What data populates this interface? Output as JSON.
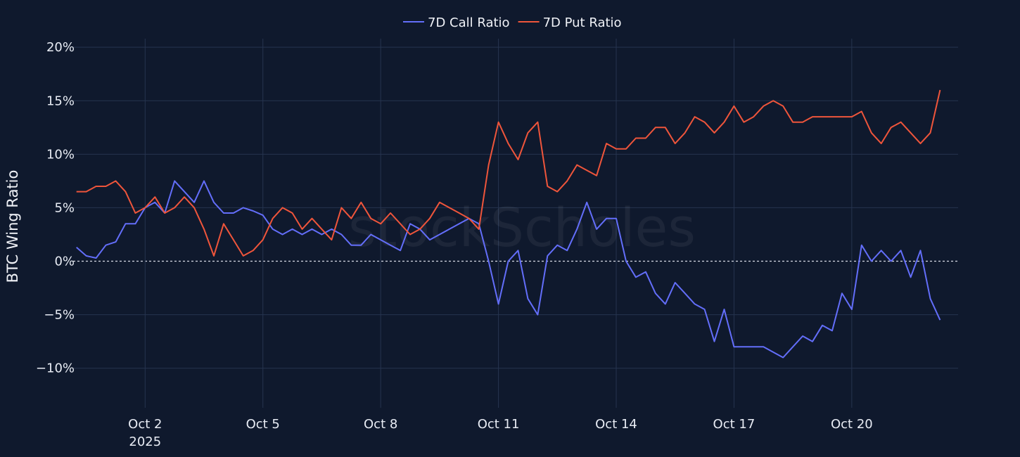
{
  "chart_data": {
    "type": "line",
    "title": "",
    "xlabel": "",
    "ylabel": "BTC Wing Ratio",
    "watermark": "stockScholes",
    "legend_placement": "top-center",
    "grid": true,
    "zero_line": "dashed",
    "xlim": [
      "2025-09-30 04:00",
      "2025-10-22 17:00"
    ],
    "ylim": [
      -13.7,
      20.8
    ],
    "y_ticks": [
      -10,
      -5,
      0,
      5,
      10,
      15,
      20
    ],
    "y_tick_labels": [
      "−10%",
      "−5%",
      "0%",
      "5%",
      "10%",
      "15%",
      "20%"
    ],
    "x_ticks": [
      "2025-10-02 00:00",
      "2025-10-05 00:00",
      "2025-10-08 00:00",
      "2025-10-11 00:00",
      "2025-10-14 00:00",
      "2025-10-17 00:00",
      "2025-10-20 00:00"
    ],
    "x_tick_labels": [
      "Oct 2",
      "Oct 5",
      "Oct 8",
      "Oct 11",
      "Oct 14",
      "Oct 17",
      "Oct 20"
    ],
    "x_tick_year": "2025",
    "x": [
      "2025-09-30 06:00",
      "2025-09-30 12:00",
      "2025-09-30 18:00",
      "2025-10-01 00:00",
      "2025-10-01 06:00",
      "2025-10-01 12:00",
      "2025-10-01 18:00",
      "2025-10-02 00:00",
      "2025-10-02 06:00",
      "2025-10-02 12:00",
      "2025-10-02 18:00",
      "2025-10-03 00:00",
      "2025-10-03 06:00",
      "2025-10-03 12:00",
      "2025-10-03 18:00",
      "2025-10-04 00:00",
      "2025-10-04 06:00",
      "2025-10-04 12:00",
      "2025-10-04 18:00",
      "2025-10-05 00:00",
      "2025-10-05 06:00",
      "2025-10-05 12:00",
      "2025-10-05 18:00",
      "2025-10-06 00:00",
      "2025-10-06 06:00",
      "2025-10-06 12:00",
      "2025-10-06 18:00",
      "2025-10-07 00:00",
      "2025-10-07 06:00",
      "2025-10-07 12:00",
      "2025-10-07 18:00",
      "2025-10-08 00:00",
      "2025-10-08 06:00",
      "2025-10-08 12:00",
      "2025-10-08 18:00",
      "2025-10-09 00:00",
      "2025-10-09 06:00",
      "2025-10-09 12:00",
      "2025-10-09 18:00",
      "2025-10-10 00:00",
      "2025-10-10 06:00",
      "2025-10-10 12:00",
      "2025-10-10 18:00",
      "2025-10-11 00:00",
      "2025-10-11 06:00",
      "2025-10-11 12:00",
      "2025-10-11 18:00",
      "2025-10-12 00:00",
      "2025-10-12 06:00",
      "2025-10-12 12:00",
      "2025-10-12 18:00",
      "2025-10-13 00:00",
      "2025-10-13 06:00",
      "2025-10-13 12:00",
      "2025-10-13 18:00",
      "2025-10-14 00:00",
      "2025-10-14 06:00",
      "2025-10-14 12:00",
      "2025-10-14 18:00",
      "2025-10-15 00:00",
      "2025-10-15 06:00",
      "2025-10-15 12:00",
      "2025-10-15 18:00",
      "2025-10-16 00:00",
      "2025-10-16 06:00",
      "2025-10-16 12:00",
      "2025-10-16 18:00",
      "2025-10-17 00:00",
      "2025-10-17 06:00",
      "2025-10-17 12:00",
      "2025-10-17 18:00",
      "2025-10-18 00:00",
      "2025-10-18 06:00",
      "2025-10-18 12:00",
      "2025-10-18 18:00",
      "2025-10-19 00:00",
      "2025-10-19 06:00",
      "2025-10-19 12:00",
      "2025-10-19 18:00",
      "2025-10-20 00:00",
      "2025-10-20 06:00",
      "2025-10-20 12:00",
      "2025-10-20 18:00",
      "2025-10-21 00:00",
      "2025-10-21 06:00",
      "2025-10-21 12:00",
      "2025-10-21 18:00",
      "2025-10-22 00:00",
      "2025-10-22 06:00"
    ],
    "series": [
      {
        "name": "7D Call Ratio",
        "color": "#636efa",
        "values": [
          1.3,
          0.5,
          0.3,
          1.5,
          1.8,
          3.5,
          3.5,
          5,
          5.5,
          4.5,
          7.5,
          6.5,
          5.5,
          7.5,
          5.5,
          4.5,
          4.5,
          5,
          4.7,
          4.3,
          3,
          2.5,
          3,
          2.5,
          3,
          2.5,
          3,
          2.5,
          1.5,
          1.5,
          2.5,
          2,
          1.5,
          1,
          3.5,
          3,
          2,
          2.5,
          3,
          3.5,
          4,
          3.5,
          0,
          -4,
          0,
          1,
          -3.5,
          -5,
          0.5,
          1.5,
          1,
          3,
          5.5,
          3,
          4,
          4,
          0,
          -1.5,
          -1,
          -3,
          -4,
          -2,
          -3,
          -4,
          -4.5,
          -7.5,
          -4.5,
          -8,
          -8,
          -8,
          -8,
          -8.5,
          -9,
          -8,
          -7,
          -7.5,
          -6,
          -6.5,
          -3,
          -4.5,
          1.5,
          0,
          1,
          0,
          1,
          -1.5,
          1,
          -3.5,
          -5.5
        ]
      },
      {
        "name": "7D Put Ratio",
        "color": "#ef553b",
        "values": [
          6.5,
          6.5,
          7,
          7,
          7.5,
          6.5,
          4.5,
          5,
          6,
          4.5,
          5,
          6,
          5,
          3,
          0.5,
          3.5,
          2,
          0.5,
          1,
          2,
          4,
          5,
          4.5,
          3,
          4,
          3,
          2,
          5,
          4,
          5.5,
          4,
          3.5,
          4.5,
          3.5,
          2.5,
          3,
          4,
          5.5,
          5,
          4.5,
          4,
          3,
          9,
          13,
          11,
          9.5,
          12,
          13,
          7,
          6.5,
          7.5,
          9,
          8.5,
          8,
          11,
          10.5,
          10.5,
          11.5,
          11.5,
          12.5,
          12.5,
          11,
          12,
          13.5,
          13,
          12,
          13,
          14.5,
          13,
          13.5,
          14.5,
          15,
          14.5,
          13,
          13,
          13.5,
          13.5,
          13.5,
          13.5,
          13.5,
          14,
          12,
          11,
          12.5,
          13,
          12,
          11,
          12,
          16
        ]
      }
    ]
  }
}
